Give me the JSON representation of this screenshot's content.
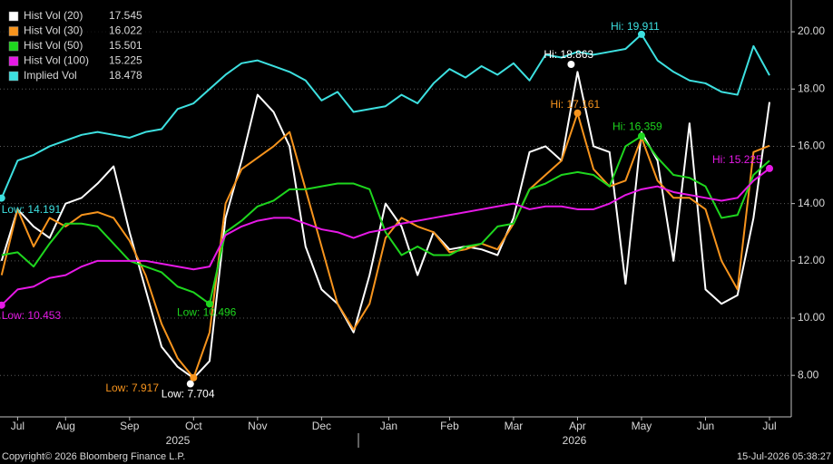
{
  "chart_data": {
    "type": "line",
    "x": [
      0.5,
      0.75,
      1,
      1.25,
      1.5,
      1.75,
      2,
      2.25,
      2.5,
      2.75,
      3,
      3.25,
      3.5,
      3.75,
      4,
      4.25,
      4.5,
      4.75,
      5,
      5.25,
      5.5,
      5.75,
      6,
      6.25,
      6.5,
      6.75,
      7,
      7.25,
      7.5,
      7.75,
      8,
      8.25,
      8.5,
      8.75,
      9,
      9.25,
      9.5,
      9.75,
      10,
      10.25,
      10.5,
      10.75,
      11,
      11.25,
      11.5,
      11.75,
      12,
      12.25,
      12.5
    ],
    "series": [
      {
        "name": "Hist Vol (20)",
        "color": "#ffffff",
        "values": [
          12.0,
          13.8,
          13.2,
          12.8,
          14.0,
          14.2,
          14.7,
          15.3,
          13.0,
          11.0,
          9.0,
          8.3,
          7.9,
          8.5,
          13.5,
          15.5,
          17.8,
          17.2,
          16.0,
          12.5,
          11.0,
          10.5,
          9.5,
          11.5,
          14.0,
          13.2,
          11.5,
          13.0,
          12.4,
          12.5,
          12.4,
          12.2,
          13.5,
          15.8,
          16.0,
          15.5,
          18.6,
          16.0,
          15.8,
          11.2,
          16.5,
          15.5,
          12.0,
          16.8,
          11.0,
          10.5,
          10.8,
          13.5,
          17.545
        ]
      },
      {
        "name": "Hist Vol (30)",
        "color": "#f7941d",
        "values": [
          11.5,
          13.8,
          12.5,
          13.5,
          13.2,
          13.6,
          13.7,
          13.5,
          12.7,
          11.5,
          9.8,
          8.6,
          7.917,
          9.5,
          14.0,
          15.2,
          15.6,
          16.0,
          16.5,
          14.5,
          12.5,
          10.5,
          9.6,
          10.5,
          12.8,
          13.5,
          13.2,
          13.0,
          12.3,
          12.4,
          12.6,
          12.4,
          13.3,
          14.5,
          15.0,
          15.5,
          17.161,
          15.2,
          14.6,
          14.8,
          16.3,
          14.8,
          14.2,
          14.2,
          13.8,
          12.0,
          11.0,
          15.8,
          16.022
        ]
      },
      {
        "name": "Hist Vol (50)",
        "color": "#1ed61e",
        "values": [
          12.2,
          12.3,
          11.8,
          12.6,
          13.3,
          13.3,
          13.2,
          12.6,
          12.0,
          11.8,
          11.6,
          11.1,
          10.9,
          10.496,
          13.0,
          13.4,
          13.9,
          14.1,
          14.5,
          14.5,
          14.6,
          14.7,
          14.7,
          14.5,
          13.0,
          12.2,
          12.5,
          12.2,
          12.2,
          12.5,
          12.6,
          13.2,
          13.3,
          14.5,
          14.7,
          15.0,
          15.1,
          15.0,
          14.6,
          16.0,
          16.359,
          15.6,
          15.0,
          14.9,
          14.6,
          13.5,
          13.6,
          15.0,
          15.501
        ]
      },
      {
        "name": "Hist Vol (100)",
        "color": "#e619e6",
        "values": [
          10.453,
          11.0,
          11.1,
          11.4,
          11.5,
          11.8,
          12.0,
          12.0,
          12.0,
          12.0,
          11.9,
          11.8,
          11.7,
          11.8,
          12.9,
          13.2,
          13.4,
          13.5,
          13.5,
          13.3,
          13.1,
          13.0,
          12.8,
          13.0,
          13.1,
          13.3,
          13.4,
          13.5,
          13.6,
          13.7,
          13.8,
          13.9,
          14.0,
          13.8,
          13.9,
          13.9,
          13.8,
          13.8,
          14.0,
          14.3,
          14.5,
          14.6,
          14.4,
          14.3,
          14.2,
          14.1,
          14.2,
          14.8,
          15.225
        ]
      },
      {
        "name": "Implied Vol",
        "color": "#3de0e0",
        "values": [
          14.191,
          15.5,
          15.7,
          16.0,
          16.2,
          16.4,
          16.5,
          16.4,
          16.3,
          16.5,
          16.6,
          17.3,
          17.5,
          18.0,
          18.5,
          18.9,
          19.0,
          18.8,
          18.6,
          18.3,
          17.6,
          17.9,
          17.2,
          17.3,
          17.4,
          17.8,
          17.5,
          18.2,
          18.7,
          18.4,
          18.8,
          18.5,
          18.9,
          18.3,
          19.2,
          19.1,
          19.3,
          19.2,
          19.3,
          19.4,
          19.911,
          19.0,
          18.6,
          18.3,
          18.2,
          17.9,
          17.8,
          19.5,
          18.478
        ]
      }
    ],
    "annotations": [
      {
        "text": "Hi: 19.911",
        "x": 10.5,
        "y": 19.911,
        "color": "#3de0e0"
      },
      {
        "text": "Low: 14.191",
        "x": 0.5,
        "y": 14.191,
        "color": "#3de0e0"
      },
      {
        "text": "Hi: 18.863",
        "x": 9.4,
        "y": 18.863,
        "color": "#ffffff"
      },
      {
        "text": "Low: 7.704",
        "x": 3.45,
        "y": 7.704,
        "color": "#ffffff"
      },
      {
        "text": "Hi: 17.161",
        "x": 9.5,
        "y": 17.161,
        "color": "#f7941d"
      },
      {
        "text": "Low: 7.917",
        "x": 3.5,
        "y": 7.917,
        "color": "#f7941d"
      },
      {
        "text": "Hi: 16.359",
        "x": 10.5,
        "y": 16.359,
        "color": "#1ed61e"
      },
      {
        "text": "Low: 10.496",
        "x": 3.75,
        "y": 10.496,
        "color": "#1ed61e"
      },
      {
        "text": "Hi: 15.225",
        "x": 12.5,
        "y": 15.225,
        "color": "#e619e6"
      },
      {
        "text": "Low: 10.453",
        "x": 0.5,
        "y": 10.453,
        "color": "#e619e6"
      }
    ],
    "xlim": [
      0.475,
      12.84
    ],
    "xticks": [
      {
        "value": 0.75,
        "label": "Jul"
      },
      {
        "value": 1.5,
        "label": "Aug"
      },
      {
        "value": 2.5,
        "label": "Sep"
      },
      {
        "value": 3.5,
        "label": "Oct"
      },
      {
        "value": 4.5,
        "label": "Nov"
      },
      {
        "value": 5.5,
        "label": "Dec"
      },
      {
        "value": 6.55,
        "label": "Jan"
      },
      {
        "value": 7.5,
        "label": "Feb"
      },
      {
        "value": 8.5,
        "label": "Mar"
      },
      {
        "value": 9.5,
        "label": "Apr"
      },
      {
        "value": 10.5,
        "label": "May"
      },
      {
        "value": 11.5,
        "label": "Jun"
      },
      {
        "value": 12.5,
        "label": "Jul"
      }
    ],
    "x_groups": [
      "2025",
      "2026"
    ],
    "ylim": [
      6.55,
      21.11
    ],
    "yticks": [
      {
        "value": 8,
        "label": "8.00"
      },
      {
        "value": 10,
        "label": "10.00"
      },
      {
        "value": 12,
        "label": "12.00"
      },
      {
        "value": 14,
        "label": "14.00"
      },
      {
        "value": 16,
        "label": "16.00"
      },
      {
        "value": 18,
        "label": "18.00"
      },
      {
        "value": 20,
        "label": "20.00"
      }
    ],
    "grid": true,
    "legend": "upper left",
    "copyright": "Copyright© 2026 Bloomberg Finance L.P.",
    "timestamp": "15-Jul-2026 05:38:27"
  }
}
